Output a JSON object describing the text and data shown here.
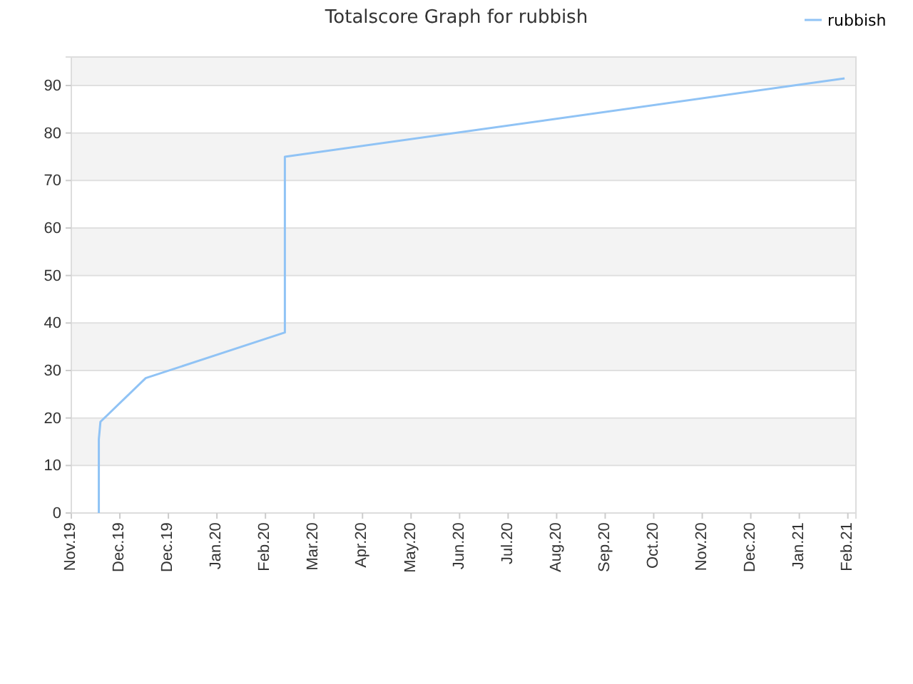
{
  "chart_data": {
    "type": "line",
    "title": "Totalscore Graph for rubbish",
    "x": [
      "2019-11-18",
      "2019-11-18",
      "2019-11-19",
      "2019-12-17",
      "2020-03-12",
      "2020-03-12",
      "2021-02-21"
    ],
    "series": [
      {
        "name": "rubbish",
        "color": "#90c3f5",
        "values": [
          0,
          15.5,
          19.2,
          28.4,
          38,
          75,
          91.5
        ]
      }
    ],
    "xlim": [
      "2019-11-01",
      "2021-02-28"
    ],
    "xticks": [
      {
        "value": "2019-11-01",
        "label": "Nov.19"
      },
      {
        "value": "2019-12-01",
        "label": "Dec.19"
      },
      {
        "value": "2019-12-31",
        "label": "Dec.19"
      },
      {
        "value": "2020-01-30",
        "label": "Jan.20"
      },
      {
        "value": "2020-02-29",
        "label": "Feb.20"
      },
      {
        "value": "2020-03-30",
        "label": "Mar.20"
      },
      {
        "value": "2020-04-29",
        "label": "Apr.20"
      },
      {
        "value": "2020-05-29",
        "label": "May.20"
      },
      {
        "value": "2020-06-28",
        "label": "Jun.20"
      },
      {
        "value": "2020-07-28",
        "label": "Jul.20"
      },
      {
        "value": "2020-08-27",
        "label": "Aug.20"
      },
      {
        "value": "2020-09-26",
        "label": "Sep.20"
      },
      {
        "value": "2020-10-26",
        "label": "Oct.20"
      },
      {
        "value": "2020-11-25",
        "label": "Nov.20"
      },
      {
        "value": "2020-12-25",
        "label": "Dec.20"
      },
      {
        "value": "2021-01-24",
        "label": "Jan.21"
      },
      {
        "value": "2021-02-23",
        "label": "Feb.21"
      }
    ],
    "ylim": [
      0,
      96
    ],
    "yticks": [
      0,
      10,
      20,
      30,
      40,
      50,
      60,
      70,
      80,
      90
    ],
    "grid": "y",
    "legend": "top right",
    "marker": "none",
    "line_style": "solid"
  }
}
